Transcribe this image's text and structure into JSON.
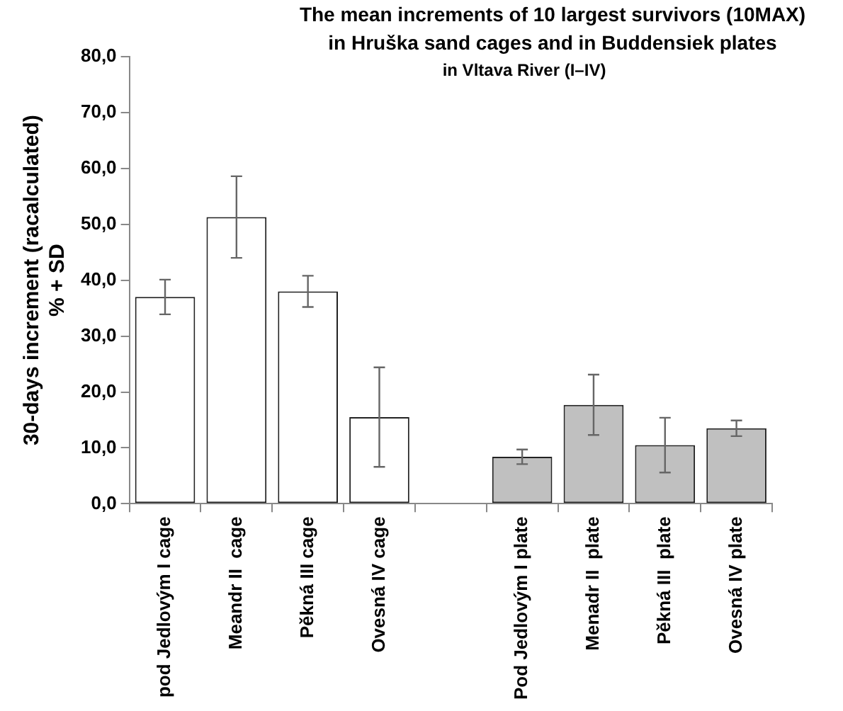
{
  "chart_data": {
    "type": "bar",
    "title": [
      "The mean increments of 10 largest survivors (10MAX)",
      "in Hruška sand cages and in Buddensiek plates",
      "in Vltava River (I–IV)"
    ],
    "ylabel": [
      "30-days increment (racalculated)",
      "% + SD"
    ],
    "categories": [
      "pod Jedlovým I cage",
      "Meandr II  cage",
      "Pěkná III cage",
      "Ovesná IV cage",
      null,
      "Pod Jedlovým I plate",
      "Menadr II  plate",
      "Pěkná III  plate",
      "Ovesná IV plate"
    ],
    "values": [
      37.0,
      51.3,
      38.0,
      15.5,
      null,
      8.4,
      17.7,
      10.5,
      13.5
    ],
    "errors": [
      3.1,
      7.3,
      2.8,
      8.9,
      null,
      1.3,
      5.4,
      4.9,
      1.4
    ],
    "colors": [
      "#ffffff",
      "#ffffff",
      "#ffffff",
      "#ffffff",
      "#ffffff",
      "#c0c0c0",
      "#c0c0c0",
      "#c0c0c0",
      "#c0c0c0"
    ],
    "ylim": [
      0,
      80
    ],
    "yticks": [
      {
        "value": 0,
        "label": "0,0"
      },
      {
        "value": 10,
        "label": "10,0"
      },
      {
        "value": 20,
        "label": "20,0"
      },
      {
        "value": 30,
        "label": "30,0"
      },
      {
        "value": 40,
        "label": "40,0"
      },
      {
        "value": 50,
        "label": "50,0"
      },
      {
        "value": 60,
        "label": "60,0"
      },
      {
        "value": 70,
        "label": "70,0"
      },
      {
        "value": 80,
        "label": "80,0"
      }
    ],
    "grid": false,
    "legend": false
  }
}
